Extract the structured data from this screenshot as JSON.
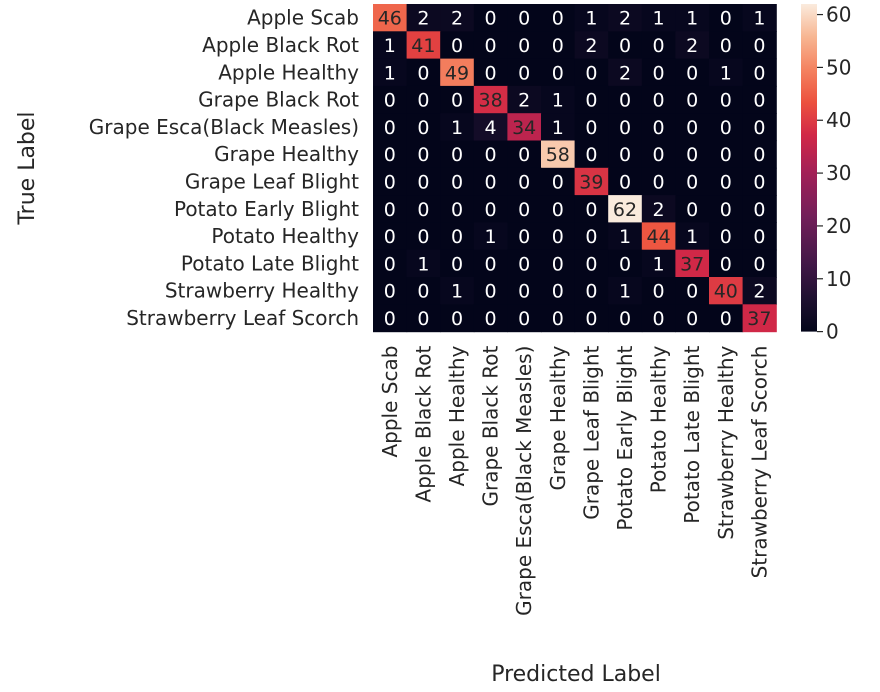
{
  "chart_data": {
    "type": "heatmap",
    "title": "",
    "xlabel": "Predicted Label",
    "ylabel": "True Label",
    "x_categories": [
      "Apple Scab",
      "Apple Black Rot",
      "Apple Healthy",
      "Grape Black Rot",
      "Grape Esca(Black Measles)",
      "Grape Healthy",
      "Grape Leaf Blight",
      "Potato Early Blight",
      "Potato Healthy",
      "Potato Late Blight",
      "Strawberry Healthy",
      "Strawberry Leaf Scorch"
    ],
    "y_categories": [
      "Apple Scab",
      "Apple Black Rot",
      "Apple Healthy",
      "Grape Black Rot",
      "Grape Esca(Black Measles)",
      "Grape Healthy",
      "Grape Leaf Blight",
      "Potato Early Blight",
      "Potato Healthy",
      "Potato Late Blight",
      "Strawberry Healthy",
      "Strawberry Leaf Scorch"
    ],
    "matrix": [
      [
        46,
        2,
        2,
        0,
        0,
        0,
        1,
        2,
        1,
        1,
        0,
        1
      ],
      [
        1,
        41,
        0,
        0,
        0,
        0,
        2,
        0,
        0,
        2,
        0,
        0
      ],
      [
        1,
        0,
        49,
        0,
        0,
        0,
        0,
        2,
        0,
        0,
        1,
        0
      ],
      [
        0,
        0,
        0,
        38,
        2,
        1,
        0,
        0,
        0,
        0,
        0,
        0
      ],
      [
        0,
        0,
        1,
        4,
        34,
        1,
        0,
        0,
        0,
        0,
        0,
        0
      ],
      [
        0,
        0,
        0,
        0,
        0,
        58,
        0,
        0,
        0,
        0,
        0,
        0
      ],
      [
        0,
        0,
        0,
        0,
        0,
        0,
        39,
        0,
        0,
        0,
        0,
        0
      ],
      [
        0,
        0,
        0,
        0,
        0,
        0,
        0,
        62,
        2,
        0,
        0,
        0
      ],
      [
        0,
        0,
        0,
        1,
        0,
        0,
        0,
        1,
        44,
        1,
        0,
        0
      ],
      [
        0,
        1,
        0,
        0,
        0,
        0,
        0,
        0,
        1,
        37,
        0,
        0
      ],
      [
        0,
        0,
        1,
        0,
        0,
        0,
        0,
        1,
        0,
        0,
        40,
        2
      ],
      [
        0,
        0,
        0,
        0,
        0,
        0,
        0,
        0,
        0,
        0,
        0,
        37
      ]
    ],
    "value_range": [
      0,
      62
    ],
    "colorbar_ticks": [
      0,
      10,
      20,
      30,
      40,
      50,
      60
    ],
    "colormap": "rocket",
    "grid": false,
    "legend": "colorbar-right"
  }
}
